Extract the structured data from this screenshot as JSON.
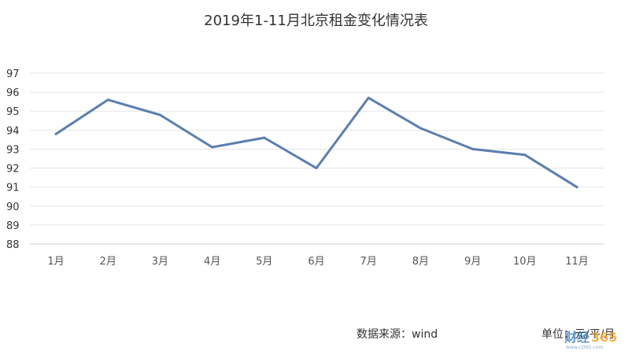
{
  "chart_data": {
    "type": "line",
    "title": "2019年1-11月北京租金变化情况表",
    "categories": [
      "1月",
      "2月",
      "3月",
      "4月",
      "5月",
      "6月",
      "7月",
      "8月",
      "9月",
      "10月",
      "11月"
    ],
    "series": [
      {
        "values": [
          93.8,
          95.6,
          94.8,
          93.1,
          93.6,
          92.0,
          95.7,
          94.1,
          93.0,
          92.7,
          91.0
        ],
        "color": "#5b7fad"
      }
    ],
    "yticks": [
      "97",
      "96",
      "95",
      "94",
      "93",
      "92",
      "91",
      "90",
      "89",
      "88"
    ],
    "ylim": [
      88,
      97
    ],
    "grid": true
  },
  "footer": {
    "source": "数据来源：wind",
    "unit": "单位：元/平/月"
  },
  "watermark": {
    "brand": "财经365",
    "url": "www.cj365.com"
  }
}
